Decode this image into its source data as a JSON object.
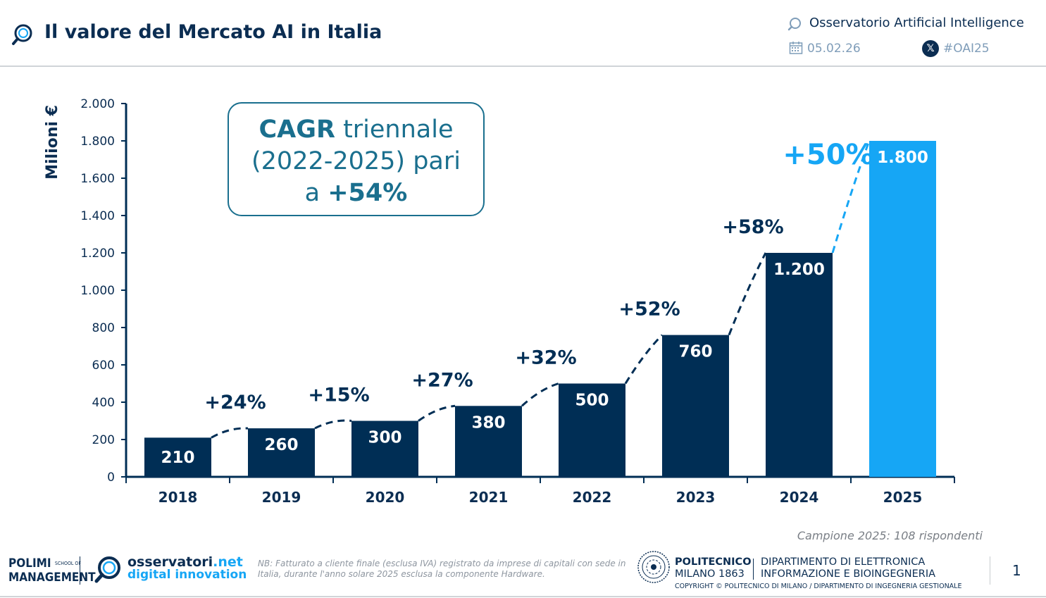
{
  "header": {
    "title": "Il valore del Mercato AI in Italia",
    "observatory": "Osservatorio Artificial Intelligence",
    "date": "05.02.26",
    "hashtag": "#OAI25"
  },
  "cagr": {
    "line1_bold": "CAGR",
    "line1_rest": " triennale",
    "line2": "(2022-2025) pari",
    "line3_prefix": "a ",
    "line3_value": "+54%"
  },
  "chart_data": {
    "type": "bar",
    "ylabel": "Milioni €",
    "ylim": [
      0,
      2000
    ],
    "yticks": [
      0,
      200,
      400,
      600,
      800,
      1000,
      1200,
      1400,
      1600,
      1800,
      2000
    ],
    "ytick_labels": [
      "0",
      "200",
      "400",
      "600",
      "800",
      "1.000",
      "1.200",
      "1.400",
      "1.600",
      "1.800",
      "2.000"
    ],
    "categories": [
      "2018",
      "2019",
      "2020",
      "2021",
      "2022",
      "2023",
      "2024",
      "2025"
    ],
    "values": [
      210,
      260,
      300,
      380,
      500,
      760,
      1200,
      1800
    ],
    "value_labels": [
      "210",
      "260",
      "300",
      "380",
      "500",
      "760",
      "1.200",
      "1.800"
    ],
    "growth_labels": [
      "+24%",
      "+15%",
      "+27%",
      "+32%",
      "+52%",
      "+58%",
      "+50%"
    ],
    "colors": {
      "bars": "#002e55",
      "highlight": "#16a6f5"
    }
  },
  "sample_note": "Campione 2025: 108 rispondenti",
  "footer": {
    "polimi_line1": "POLIMI",
    "polimi_small": "SCHOOL OF",
    "polimi_line2": "MANAGEMENT",
    "obs_word": "osservatori",
    "obs_net": ".net",
    "obs_sub": "digital innovation",
    "nb": "NB: Fatturato a cliente finale (esclusa IVA) registrato da imprese di capitali con sede in Italia, durante l'anno solare 2025 esclusa la componente Hardware.",
    "polimi_name": "POLITECNICO",
    "polimi_city": "MILANO 1863",
    "dept_line1": "DIPARTIMENTO DI ELETTRONICA",
    "dept_line2": "INFORMAZIONE E BIOINGEGNERIA",
    "copyright": "COPYRIGHT © POLITECNICO DI MILANO / DIPARTIMENTO DI INGEGNERIA GESTIONALE",
    "page": "1"
  }
}
